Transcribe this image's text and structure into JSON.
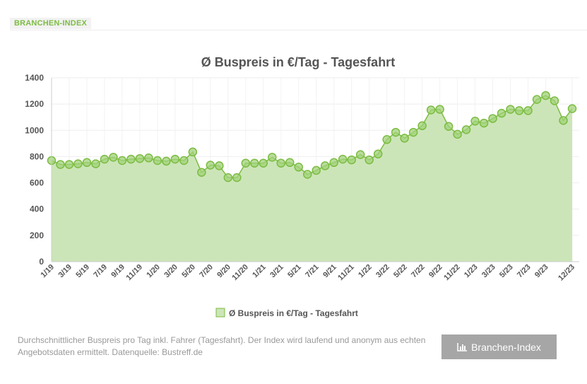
{
  "header": {
    "tag": "BRANCHEN-INDEX"
  },
  "chart_data": {
    "type": "area",
    "title": "Ø Buspreis in €/Tag - Tagesfahrt",
    "series": [
      {
        "name": "Ø Buspreis in €/Tag - Tagesfahrt",
        "color": "#7cbc42",
        "fill": "#cce5b8",
        "values": [
          770,
          740,
          740,
          745,
          755,
          745,
          780,
          795,
          770,
          780,
          785,
          790,
          770,
          765,
          780,
          770,
          835,
          680,
          735,
          730,
          640,
          640,
          750,
          750,
          750,
          795,
          750,
          755,
          720,
          665,
          695,
          730,
          755,
          780,
          775,
          815,
          775,
          820,
          930,
          985,
          940,
          985,
          1035,
          1155,
          1160,
          1030,
          970,
          1005,
          1070,
          1055,
          1090,
          1130,
          1160,
          1150,
          1150,
          1235,
          1265,
          1225,
          1075,
          1165
        ]
      }
    ],
    "x": [
      "1/19",
      "2/19",
      "3/19",
      "4/19",
      "5/19",
      "6/19",
      "7/19",
      "8/19",
      "9/19",
      "10/19",
      "11/19",
      "12/19",
      "1/20",
      "2/20",
      "3/20",
      "4/20",
      "5/20",
      "6/20",
      "7/20",
      "8/20",
      "9/20",
      "10/20",
      "11/20",
      "12/20",
      "1/21",
      "2/21",
      "3/21",
      "4/21",
      "5/21",
      "6/21",
      "7/21",
      "8/21",
      "9/21",
      "10/21",
      "11/21",
      "12/21",
      "1/22",
      "2/22",
      "3/22",
      "4/22",
      "5/22",
      "6/22",
      "7/22",
      "8/22",
      "9/22",
      "10/22",
      "11/22",
      "12/22",
      "1/23",
      "2/23",
      "3/23",
      "4/23",
      "5/23",
      "6/23",
      "7/23",
      "8/23",
      "9/23",
      "10/23",
      "11/23",
      "12/23"
    ],
    "x_tick_labels": [
      "1/19",
      "3/19",
      "5/19",
      "7/19",
      "9/19",
      "11/19",
      "1/20",
      "3/20",
      "5/20",
      "7/20",
      "9/20",
      "11/20",
      "1/21",
      "3/21",
      "5/21",
      "7/21",
      "9/21",
      "11/21",
      "1/22",
      "3/22",
      "5/22",
      "7/22",
      "9/22",
      "11/22",
      "1/23",
      "3/23",
      "5/23",
      "7/23",
      "9/23",
      "12/23"
    ],
    "y_ticks": [
      "0",
      "200",
      "400",
      "600",
      "800",
      "1000",
      "1200",
      "1400"
    ],
    "ylim": [
      0,
      1400
    ],
    "grid": true,
    "legend": "bottom"
  },
  "footer": {
    "text": "Durchschnittlicher Buspreis pro Tag inkl. Fahrer  (Tagesfahrt). Der Index wird laufend und anonym aus echten Angebotsdaten ermittelt. Datenquelle: Bustreff.de",
    "button": "Branchen-Index"
  }
}
